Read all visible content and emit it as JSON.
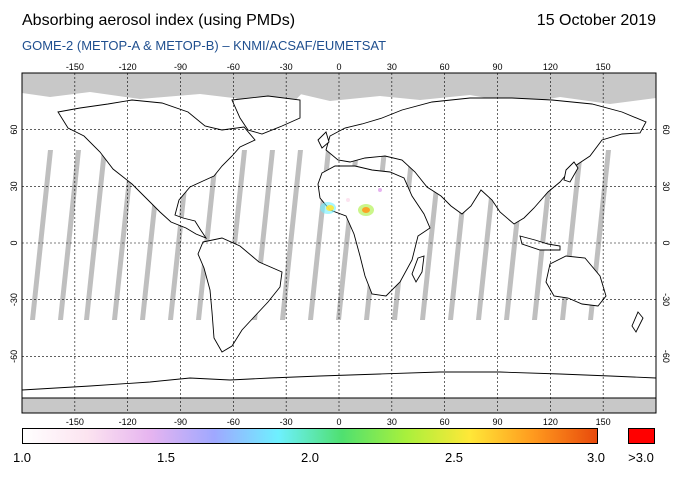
{
  "header": {
    "title": "Absorbing aerosol index (using PMDs)",
    "date": "15 October 2019",
    "subtitle": "GOME-2 (METOP-A & METOP-B)  –  KNMI/ACSAF/EUMETSAT"
  },
  "map": {
    "lon_ticks": [
      "-150",
      "-120",
      "-90",
      "-60",
      "-30",
      "0",
      "30",
      "60",
      "90",
      "120",
      "150"
    ],
    "lat_ticks_left": [
      "60",
      "30",
      "0",
      "-30",
      "-60"
    ],
    "lat_ticks_right": [
      "60",
      "30",
      "0",
      "-30",
      "-60"
    ],
    "lon_range": [
      -180,
      180
    ],
    "lat_range": [
      -90,
      90
    ],
    "grid": true
  },
  "colorbar": {
    "labels": [
      "1.0",
      "1.5",
      "2.0",
      "2.5",
      "3.0"
    ],
    "over_label": ">3.0",
    "range": [
      1.0,
      3.0
    ],
    "over_color": "#ff0000",
    "stops": [
      "#ffffff",
      "#fce4f0",
      "#e6b4f0",
      "#9fa8ff",
      "#6ef0ff",
      "#4fe070",
      "#a8f03c",
      "#ffe838",
      "#ff9a1e",
      "#e84a0c"
    ]
  },
  "colors": {
    "no_data": "#c8c8c8",
    "orbit_gap": "#b4b4b4",
    "coastline": "#000000",
    "subtitle": "#1f4f8f"
  }
}
